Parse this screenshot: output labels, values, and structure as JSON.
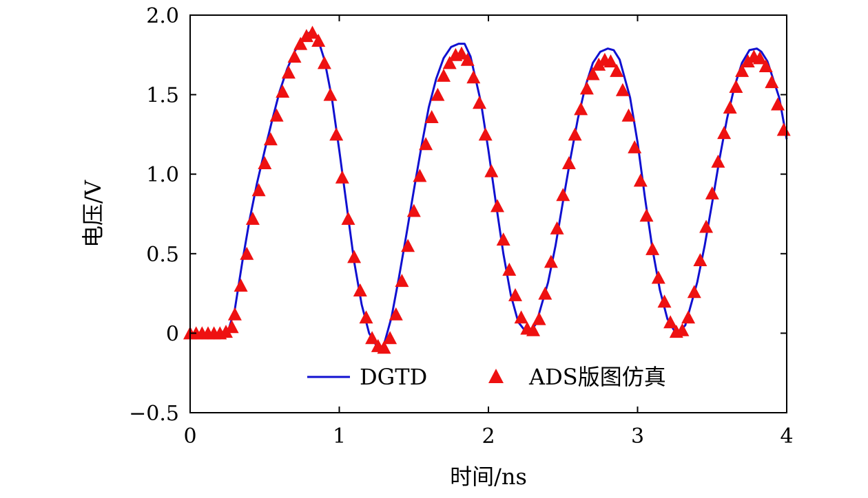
{
  "chart_data": {
    "type": "line",
    "title": "",
    "xlabel": "时间/ns",
    "ylabel": "电压/V",
    "xlim": [
      0,
      4
    ],
    "ylim": [
      -0.5,
      2.0
    ],
    "xticks": [
      0,
      1,
      2,
      3,
      4
    ],
    "xtick_labels": [
      "0",
      "1",
      "2",
      "3",
      "4"
    ],
    "yticks": [
      -0.5,
      0,
      0.5,
      1.0,
      1.5,
      2.0
    ],
    "ytick_labels": [
      "−0.5",
      "0",
      "0.5",
      "1.0",
      "1.5",
      "2.0"
    ],
    "grid": false,
    "legend_position": "bottom-center",
    "series": [
      {
        "name": "DGTD",
        "style": "line",
        "color": "#1010d0",
        "x": [
          0,
          0.1,
          0.2,
          0.25,
          0.3,
          0.35,
          0.4,
          0.45,
          0.5,
          0.55,
          0.6,
          0.65,
          0.7,
          0.75,
          0.8,
          0.85,
          0.9,
          0.95,
          1.0,
          1.05,
          1.1,
          1.15,
          1.2,
          1.25,
          1.28,
          1.3,
          1.35,
          1.4,
          1.45,
          1.5,
          1.55,
          1.6,
          1.65,
          1.7,
          1.75,
          1.8,
          1.84,
          1.88,
          1.95,
          2.0,
          2.05,
          2.1,
          2.15,
          2.2,
          2.25,
          2.28,
          2.32,
          2.4,
          2.45,
          2.5,
          2.55,
          2.6,
          2.65,
          2.7,
          2.75,
          2.8,
          2.84,
          2.88,
          2.95,
          3.0,
          3.05,
          3.1,
          3.15,
          3.2,
          3.25,
          3.28,
          3.32,
          3.4,
          3.45,
          3.5,
          3.55,
          3.6,
          3.65,
          3.7,
          3.75,
          3.8,
          3.83,
          3.87,
          3.95,
          4.0
        ],
        "y": [
          -0.01,
          -0.01,
          -0.01,
          0.0,
          0.15,
          0.45,
          0.72,
          0.95,
          1.15,
          1.34,
          1.52,
          1.66,
          1.77,
          1.85,
          1.89,
          1.87,
          1.72,
          1.48,
          1.15,
          0.8,
          0.45,
          0.18,
          0.0,
          -0.08,
          -0.09,
          -0.07,
          0.1,
          0.35,
          0.62,
          0.9,
          1.17,
          1.42,
          1.6,
          1.73,
          1.8,
          1.82,
          1.82,
          1.74,
          1.45,
          1.15,
          0.82,
          0.5,
          0.24,
          0.07,
          0.01,
          0.01,
          0.06,
          0.32,
          0.55,
          0.83,
          1.1,
          1.35,
          1.55,
          1.7,
          1.77,
          1.79,
          1.78,
          1.72,
          1.48,
          1.2,
          0.85,
          0.53,
          0.27,
          0.09,
          0.01,
          0.01,
          0.05,
          0.32,
          0.55,
          0.82,
          1.1,
          1.35,
          1.55,
          1.7,
          1.78,
          1.79,
          1.77,
          1.71,
          1.48,
          1.22
        ]
      },
      {
        "name": "ADS版图仿真",
        "style": "triangle-markers",
        "color": "#ee1111",
        "x": [
          0,
          0.04,
          0.08,
          0.12,
          0.16,
          0.2,
          0.24,
          0.28,
          0.3,
          0.34,
          0.38,
          0.42,
          0.46,
          0.5,
          0.54,
          0.58,
          0.62,
          0.66,
          0.7,
          0.74,
          0.78,
          0.82,
          0.86,
          0.9,
          0.94,
          0.98,
          1.02,
          1.06,
          1.1,
          1.14,
          1.18,
          1.22,
          1.26,
          1.3,
          1.34,
          1.38,
          1.42,
          1.46,
          1.5,
          1.54,
          1.58,
          1.62,
          1.66,
          1.7,
          1.74,
          1.78,
          1.82,
          1.86,
          1.9,
          1.94,
          1.98,
          2.02,
          2.06,
          2.1,
          2.14,
          2.18,
          2.22,
          2.26,
          2.3,
          2.34,
          2.38,
          2.42,
          2.46,
          2.5,
          2.54,
          2.58,
          2.62,
          2.66,
          2.7,
          2.74,
          2.78,
          2.82,
          2.86,
          2.9,
          2.94,
          2.98,
          3.02,
          3.06,
          3.1,
          3.14,
          3.18,
          3.22,
          3.26,
          3.3,
          3.34,
          3.38,
          3.42,
          3.46,
          3.5,
          3.54,
          3.58,
          3.62,
          3.66,
          3.7,
          3.74,
          3.78,
          3.82,
          3.86,
          3.9,
          3.94,
          3.98
        ],
        "y": [
          0.0,
          0.0,
          0.0,
          0.0,
          0.0,
          0.0,
          0.01,
          0.04,
          0.12,
          0.3,
          0.5,
          0.72,
          0.9,
          1.07,
          1.22,
          1.37,
          1.52,
          1.64,
          1.74,
          1.82,
          1.87,
          1.89,
          1.84,
          1.7,
          1.5,
          1.25,
          0.98,
          0.72,
          0.48,
          0.27,
          0.1,
          -0.03,
          -0.08,
          -0.09,
          -0.03,
          0.12,
          0.33,
          0.55,
          0.77,
          0.99,
          1.19,
          1.36,
          1.5,
          1.62,
          1.7,
          1.75,
          1.76,
          1.72,
          1.61,
          1.45,
          1.25,
          1.02,
          0.8,
          0.59,
          0.4,
          0.24,
          0.1,
          0.03,
          0.02,
          0.09,
          0.25,
          0.45,
          0.66,
          0.87,
          1.07,
          1.25,
          1.41,
          1.54,
          1.63,
          1.69,
          1.72,
          1.71,
          1.65,
          1.53,
          1.37,
          1.17,
          0.96,
          0.74,
          0.53,
          0.35,
          0.2,
          0.07,
          0.01,
          0.02,
          0.1,
          0.26,
          0.46,
          0.67,
          0.88,
          1.08,
          1.26,
          1.42,
          1.55,
          1.65,
          1.71,
          1.74,
          1.73,
          1.68,
          1.58,
          1.44,
          1.28
        ]
      }
    ]
  }
}
